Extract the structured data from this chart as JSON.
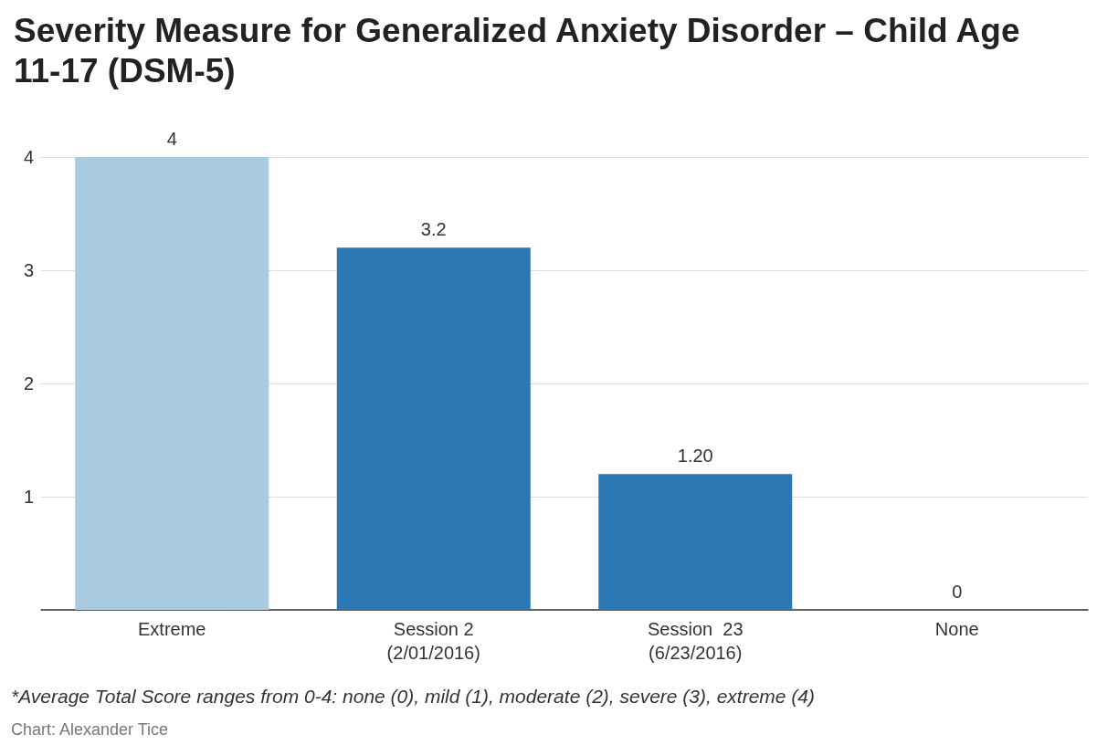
{
  "chart_data": {
    "type": "bar",
    "title": "Severity Measure for Generalized Anxiety Disorder – Child Age 11-17 (DSM-5)",
    "categories": [
      "Extreme",
      "Session 2\n(2/01/2016)",
      "Session  23\n(6/23/2016)",
      "None"
    ],
    "values": [
      4,
      3.2,
      1.2,
      0
    ],
    "colors": [
      "#a9cbe2",
      "#2b78b4",
      "#2b78b4",
      "#2b78b4"
    ],
    "value_labels": [
      "4",
      "3.2",
      "1.20",
      "0"
    ],
    "ylim": [
      0,
      4
    ],
    "yticks": [
      {
        "value": 0,
        "label": null
      },
      1,
      2,
      3,
      4
    ],
    "grid": "y",
    "annotations": [
      "*Average Total Score ranges from 0-4: none (0), mild (1), moderate (2), severe (3), extreme (4)",
      "Chart: Alexander Tice"
    ]
  }
}
